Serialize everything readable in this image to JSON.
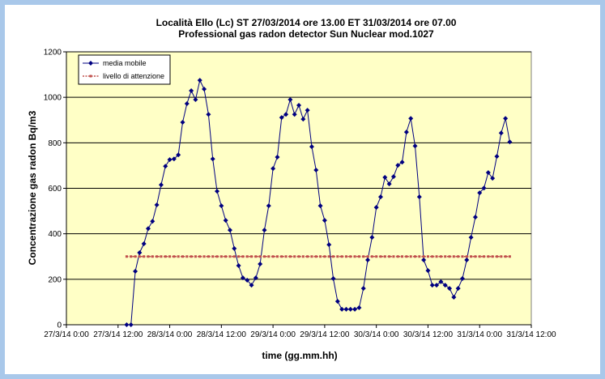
{
  "chart_data": {
    "type": "line",
    "title": "Località Ello (Lc) ST 27/03/2014 ore 13.00 ET 31/03/2014 ore 07.00",
    "subtitle": "Professional gas radon detector Sun Nuclear mod.1027",
    "xlabel": "time (gg.mm.hh)",
    "ylabel": "Concentrazione gas radon Bq/m3",
    "xlim": [
      0,
      108
    ],
    "xticks": [
      {
        "value": 0,
        "label": "27/3/14 0:00"
      },
      {
        "value": 12,
        "label": "27/3/14 12:00"
      },
      {
        "value": 24,
        "label": "28/3/14 0:00"
      },
      {
        "value": 36,
        "label": "28/3/14 12:00"
      },
      {
        "value": 48,
        "label": "29/3/14 0:00"
      },
      {
        "value": 60,
        "label": "29/3/14 12:00"
      },
      {
        "value": 72,
        "label": "30/3/14 0:00"
      },
      {
        "value": 84,
        "label": "30/3/14 12:00"
      },
      {
        "value": 96,
        "label": "31/3/14 0:00"
      },
      {
        "value": 108,
        "label": "31/3/14 12:00"
      }
    ],
    "ylim": [
      0,
      1200
    ],
    "yticks": [
      0,
      200,
      400,
      600,
      800,
      1000,
      1200
    ],
    "grid": true,
    "legend": "upper left",
    "x": [
      14,
      15,
      16,
      17,
      18,
      19,
      20,
      21,
      22,
      23,
      24,
      25,
      26,
      27,
      28,
      29,
      30,
      31,
      32,
      33,
      34,
      35,
      36,
      37,
      38,
      39,
      40,
      41,
      42,
      43,
      44,
      45,
      46,
      47,
      48,
      49,
      50,
      51,
      52,
      53,
      54,
      55,
      56,
      57,
      58,
      59,
      60,
      61,
      62,
      63,
      64,
      65,
      66,
      67,
      68,
      69,
      70,
      71,
      72,
      73,
      74,
      75,
      76,
      77,
      78,
      79,
      80,
      81,
      82,
      83,
      84,
      85,
      86,
      87,
      88,
      89,
      90,
      91,
      92,
      93,
      94,
      95,
      96,
      97,
      98,
      99,
      100,
      101,
      102,
      103
    ],
    "series": [
      {
        "name": "media mobile",
        "color": "#000080",
        "marker": "diamond",
        "dash": false,
        "values": [
          0,
          0,
          235,
          317,
          356,
          423,
          455,
          527,
          615,
          697,
          726,
          729,
          747,
          890,
          972,
          1029,
          990,
          1075,
          1036,
          925,
          729,
          587,
          523,
          459,
          416,
          335,
          260,
          206,
          196,
          174,
          206,
          267,
          416,
          523,
          687,
          737,
          911,
          925,
          990,
          925,
          965,
          904,
          943,
          783,
          680,
          523,
          459,
          352,
          203,
          103,
          68,
          68,
          68,
          68,
          75,
          160,
          285,
          384,
          516,
          562,
          648,
          619,
          651,
          701,
          715,
          847,
          907,
          786,
          562,
          285,
          238,
          174,
          174,
          189,
          174,
          160,
          121,
          160,
          203,
          285,
          384,
          473,
          580,
          601,
          669,
          644,
          740,
          843,
          907,
          804
        ]
      },
      {
        "name": "livello di attenzione",
        "color": "#c0504d",
        "marker": "square",
        "dash": true,
        "values": [
          300,
          300,
          300,
          300,
          300,
          300,
          300,
          300,
          300,
          300,
          300,
          300,
          300,
          300,
          300,
          300,
          300,
          300,
          300,
          300,
          300,
          300,
          300,
          300,
          300,
          300,
          300,
          300,
          300,
          300,
          300,
          300,
          300,
          300,
          300,
          300,
          300,
          300,
          300,
          300,
          300,
          300,
          300,
          300,
          300,
          300,
          300,
          300,
          300,
          300,
          300,
          300,
          300,
          300,
          300,
          300,
          300,
          300,
          300,
          300,
          300,
          300,
          300,
          300,
          300,
          300,
          300,
          300,
          300,
          300,
          300,
          300,
          300,
          300,
          300,
          300,
          300,
          300,
          300,
          300,
          300,
          300,
          300,
          300,
          300,
          300,
          300,
          300,
          300,
          300
        ]
      }
    ]
  }
}
